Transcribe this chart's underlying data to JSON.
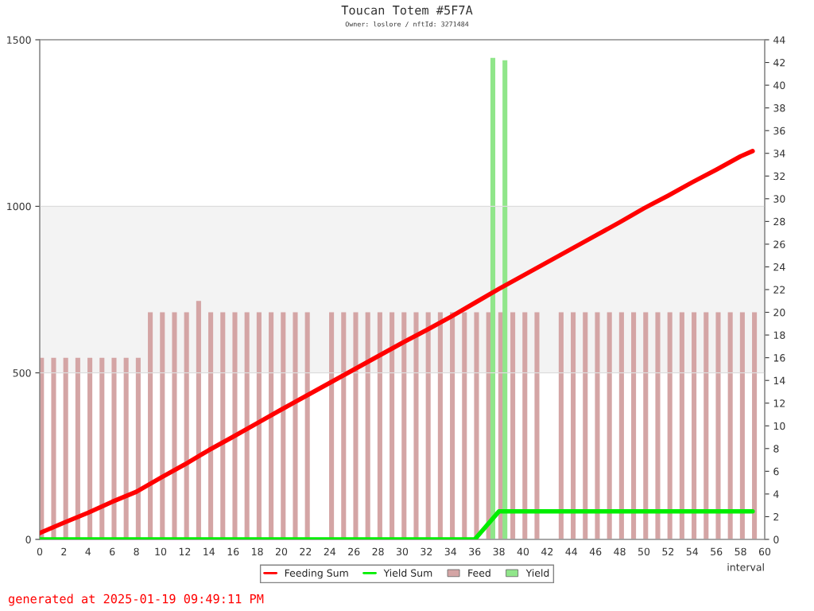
{
  "chart_data": {
    "type": "bar",
    "title": "Toucan Totem #5F7A",
    "subtitle": "Owner: loslore / nftId: 3271484",
    "xlabel": "interval",
    "annotations": [
      "generated at 2025-01-19 09:49:11 PM"
    ],
    "xlim": [
      0,
      60
    ],
    "xticks": [
      0,
      2,
      4,
      6,
      8,
      10,
      12,
      14,
      16,
      18,
      20,
      22,
      24,
      26,
      28,
      30,
      32,
      34,
      36,
      38,
      40,
      42,
      44,
      46,
      48,
      50,
      52,
      54,
      56,
      58,
      60
    ],
    "ylim": [
      0,
      1500
    ],
    "yticks": [
      0,
      500,
      1000,
      1500
    ],
    "y2lim": [
      0,
      44
    ],
    "y2ticks": [
      0,
      2,
      4,
      6,
      8,
      10,
      12,
      14,
      16,
      18,
      20,
      22,
      24,
      26,
      28,
      30,
      32,
      34,
      36,
      38,
      40,
      42,
      44
    ],
    "grid": "y",
    "legend": "bottom",
    "bands": [
      {
        "axis": "y",
        "from": 500,
        "to": 1000,
        "color": "#f3f3f3"
      }
    ],
    "series": [
      {
        "name": "Feeding Sum",
        "type": "line",
        "color": "#ff0000",
        "x": [
          0,
          2,
          4,
          6,
          8,
          10,
          12,
          14,
          16,
          18,
          20,
          22,
          24,
          26,
          28,
          30,
          32,
          34,
          36,
          38,
          40,
          42,
          44,
          46,
          48,
          50,
          52,
          54,
          56,
          58,
          59
        ],
        "values": [
          19,
          50,
          80,
          113,
          143,
          185,
          225,
          268,
          308,
          349,
          390,
          430,
          470,
          510,
          550,
          590,
          628,
          668,
          710,
          752,
          792,
          832,
          872,
          912,
          952,
          994,
          1032,
          1072,
          1110,
          1150,
          1166
        ]
      },
      {
        "name": "Yield Sum",
        "type": "line",
        "color": "#00ee00",
        "x": [
          0,
          36,
          38,
          59
        ],
        "values": [
          0,
          0,
          84,
          84
        ]
      },
      {
        "name": "Feed",
        "axis": "y2",
        "color": "#d4a5a5",
        "x": [
          0,
          1,
          2,
          3,
          4,
          5,
          6,
          7,
          8,
          9,
          10,
          11,
          12,
          13,
          14,
          15,
          16,
          17,
          18,
          19,
          20,
          21,
          22,
          24,
          25,
          26,
          27,
          28,
          29,
          30,
          31,
          32,
          33,
          34,
          35,
          36,
          37,
          38,
          39,
          40,
          41,
          43,
          44,
          45,
          46,
          47,
          48,
          49,
          50,
          51,
          52,
          53,
          54,
          55,
          56,
          57,
          58,
          59
        ],
        "values": [
          16,
          16,
          16,
          16,
          16,
          16,
          16,
          16,
          16,
          20,
          20,
          20,
          20,
          21,
          20,
          20,
          20,
          20,
          20,
          20,
          20,
          20,
          20,
          20,
          20,
          20,
          20,
          20,
          20,
          20,
          20,
          20,
          20,
          20,
          20,
          20,
          20,
          20,
          20,
          20,
          20,
          20,
          20,
          20,
          20,
          20,
          20,
          20,
          20,
          20,
          20,
          20,
          20,
          20,
          20,
          20,
          20,
          20
        ]
      },
      {
        "name": "Yield",
        "axis": "y2",
        "color": "#90e68a",
        "x": [
          37,
          38
        ],
        "values": [
          42.4,
          42.2
        ]
      }
    ]
  }
}
